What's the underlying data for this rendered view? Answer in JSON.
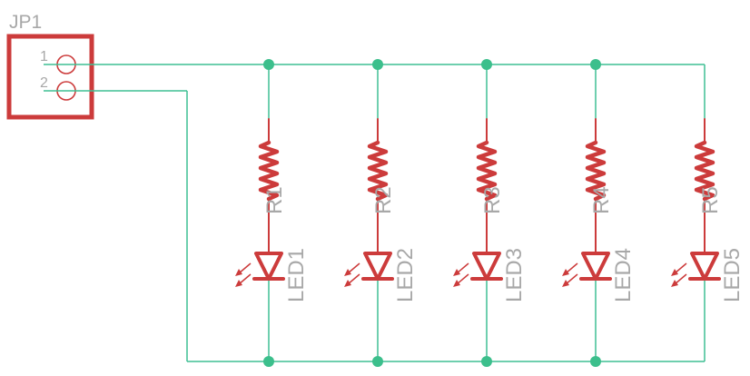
{
  "connector": {
    "ref": "JP1",
    "pins": [
      "1",
      "2"
    ]
  },
  "branches": [
    {
      "resistor": "R1",
      "led": "LED1"
    },
    {
      "resistor": "R2",
      "led": "LED2"
    },
    {
      "resistor": "R3",
      "led": "LED3"
    },
    {
      "resistor": "R4",
      "led": "LED4"
    },
    {
      "resistor": "R5",
      "led": "LED5"
    }
  ],
  "colors": {
    "wire": "#3fbf94",
    "junction": "#3cbf8c",
    "part": "#cc3b3b",
    "label": "#a8a8a8"
  }
}
